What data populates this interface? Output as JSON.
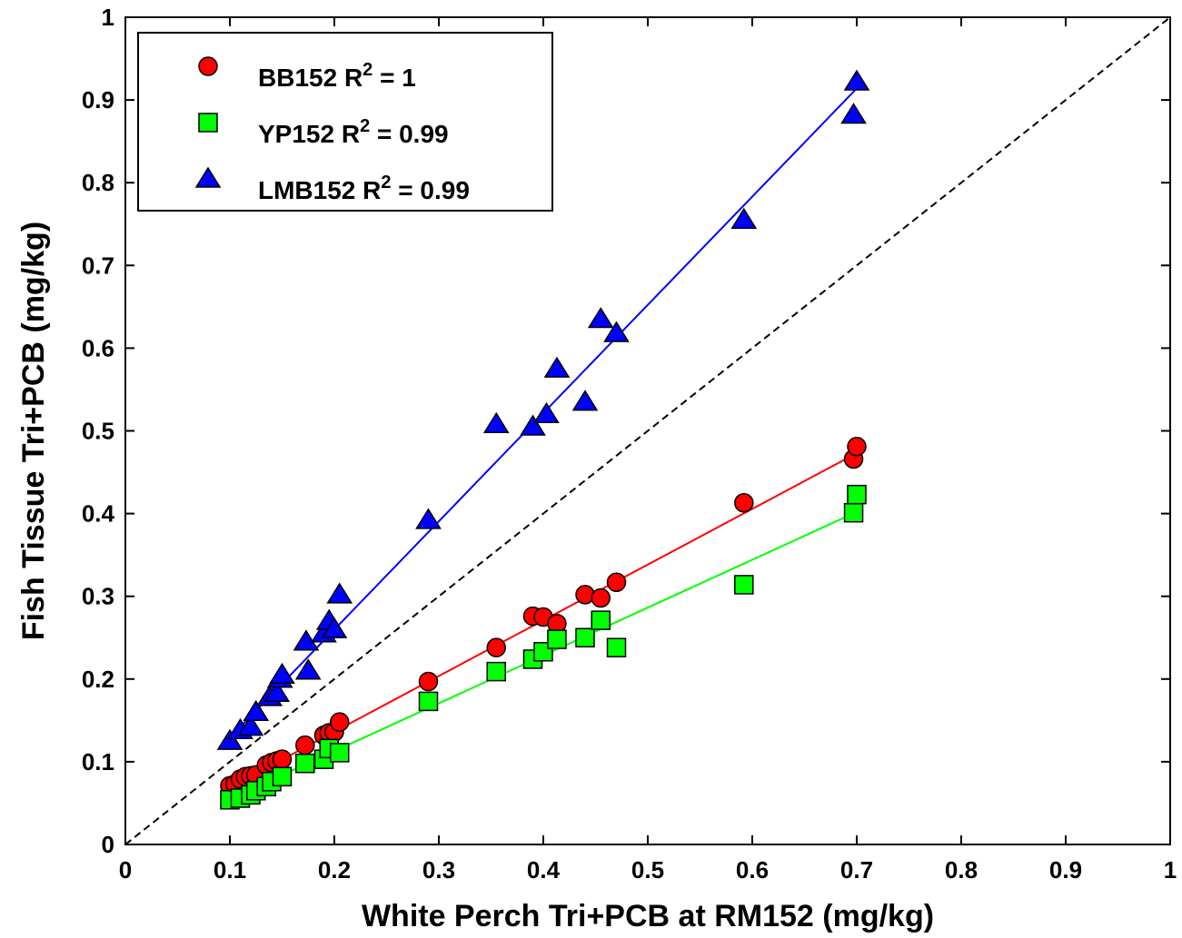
{
  "chart_data": {
    "type": "scatter",
    "xlabel": "White Perch Tri+PCB at RM152 (mg/kg)",
    "ylabel": "Fish Tissue Tri+PCB (mg/kg)",
    "xlim": [
      0,
      1
    ],
    "ylim": [
      0,
      1
    ],
    "x_ticks": [
      "0",
      "0.1",
      "0.2",
      "0.3",
      "0.4",
      "0.5",
      "0.6",
      "0.7",
      "0.8",
      "0.9",
      "1"
    ],
    "y_ticks": [
      "0",
      "0.1",
      "0.2",
      "0.3",
      "0.4",
      "0.5",
      "0.6",
      "0.7",
      "0.8",
      "0.9",
      "1"
    ],
    "grid": false,
    "legend_position": "top-left",
    "reference_line": {
      "style": "dashed",
      "color": "#000000",
      "from": [
        0,
        0
      ],
      "to": [
        1,
        1
      ]
    },
    "series": [
      {
        "key": "bb",
        "name": "BB152",
        "r2_label": "R",
        "r2_sup": "2",
        "r2_value": " = 1",
        "marker": "circle",
        "color": "#ff0000",
        "fit": {
          "from": [
            0.1,
            0.069
          ],
          "to": [
            0.7,
            0.473
          ]
        },
        "points": [
          [
            0.1,
            0.071
          ],
          [
            0.105,
            0.073
          ],
          [
            0.11,
            0.079
          ],
          [
            0.115,
            0.082
          ],
          [
            0.12,
            0.083
          ],
          [
            0.125,
            0.084
          ],
          [
            0.135,
            0.096
          ],
          [
            0.14,
            0.099
          ],
          [
            0.145,
            0.101
          ],
          [
            0.15,
            0.103
          ],
          [
            0.172,
            0.12
          ],
          [
            0.19,
            0.132
          ],
          [
            0.195,
            0.135
          ],
          [
            0.2,
            0.136
          ],
          [
            0.205,
            0.148
          ],
          [
            0.29,
            0.197
          ],
          [
            0.355,
            0.238
          ],
          [
            0.39,
            0.276
          ],
          [
            0.4,
            0.275
          ],
          [
            0.413,
            0.267
          ],
          [
            0.44,
            0.302
          ],
          [
            0.455,
            0.298
          ],
          [
            0.47,
            0.317
          ],
          [
            0.592,
            0.413
          ],
          [
            0.697,
            0.466
          ],
          [
            0.7,
            0.481
          ]
        ]
      },
      {
        "key": "yp",
        "name": "YP152",
        "r2_label": "R",
        "r2_sup": "2",
        "r2_value": " = 0.99",
        "marker": "square",
        "color": "#00ff00",
        "fit": {
          "from": [
            0.1,
            0.055
          ],
          "to": [
            0.7,
            0.402
          ]
        },
        "points": [
          [
            0.1,
            0.054
          ],
          [
            0.11,
            0.056
          ],
          [
            0.12,
            0.06
          ],
          [
            0.125,
            0.065
          ],
          [
            0.135,
            0.07
          ],
          [
            0.14,
            0.076
          ],
          [
            0.15,
            0.082
          ],
          [
            0.172,
            0.098
          ],
          [
            0.19,
            0.103
          ],
          [
            0.195,
            0.116
          ],
          [
            0.205,
            0.111
          ],
          [
            0.29,
            0.173
          ],
          [
            0.355,
            0.209
          ],
          [
            0.39,
            0.224
          ],
          [
            0.4,
            0.233
          ],
          [
            0.413,
            0.248
          ],
          [
            0.44,
            0.25
          ],
          [
            0.455,
            0.271
          ],
          [
            0.47,
            0.238
          ],
          [
            0.592,
            0.314
          ],
          [
            0.697,
            0.401
          ],
          [
            0.7,
            0.423
          ]
        ]
      },
      {
        "key": "lmb",
        "name": "LMB152",
        "r2_label": "R",
        "r2_sup": "2",
        "r2_value": " = 0.99",
        "marker": "triangle",
        "color": "#0000ff",
        "fit": {
          "from": [
            0.1,
            0.129
          ],
          "to": [
            0.7,
            0.914
          ]
        },
        "points": [
          [
            0.1,
            0.125
          ],
          [
            0.11,
            0.138
          ],
          [
            0.12,
            0.142
          ],
          [
            0.125,
            0.16
          ],
          [
            0.138,
            0.178
          ],
          [
            0.145,
            0.183
          ],
          [
            0.148,
            0.2
          ],
          [
            0.15,
            0.205
          ],
          [
            0.173,
            0.245
          ],
          [
            0.175,
            0.21
          ],
          [
            0.19,
            0.255
          ],
          [
            0.195,
            0.27
          ],
          [
            0.2,
            0.26
          ],
          [
            0.205,
            0.302
          ],
          [
            0.29,
            0.392
          ],
          [
            0.355,
            0.508
          ],
          [
            0.39,
            0.505
          ],
          [
            0.403,
            0.52
          ],
          [
            0.413,
            0.575
          ],
          [
            0.44,
            0.535
          ],
          [
            0.455,
            0.635
          ],
          [
            0.47,
            0.618
          ],
          [
            0.592,
            0.755
          ],
          [
            0.697,
            0.882
          ],
          [
            0.7,
            0.922
          ]
        ]
      }
    ]
  }
}
